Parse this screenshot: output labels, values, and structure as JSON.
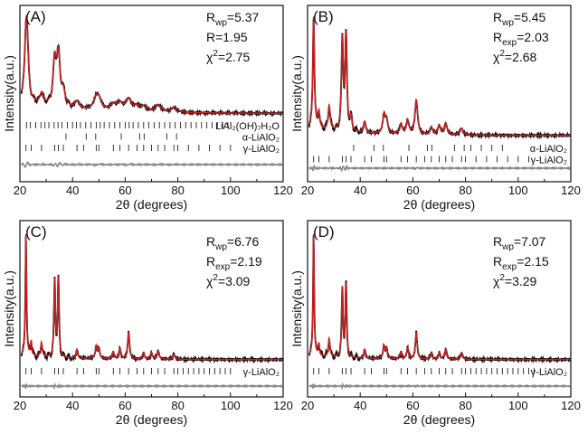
{
  "colors": {
    "observed": "#111111",
    "calculated": "#cc1f1f",
    "difference": "#8c8c8c",
    "reflections": "#222222"
  },
  "chart_data": [
    {
      "type": "line",
      "panel": "(A)",
      "xlabel": "2θ (degrees)",
      "ylabel": "Intensity(a.u.)",
      "xlim": [
        20,
        120
      ],
      "xticks": [
        "20",
        "40",
        "60",
        "80",
        "100",
        "120"
      ],
      "series": [
        {
          "name": "Observed"
        },
        {
          "name": "Calculated"
        },
        {
          "name": "Difference"
        }
      ],
      "stats": [
        {
          "label": "R",
          "sub": "wp",
          "value": "=5.37"
        },
        {
          "label": "R",
          "sub": "",
          "value": "=1.95"
        },
        {
          "label": "χ",
          "sup": "2",
          "value": "=2.75"
        }
      ],
      "phases": [
        {
          "name": "LiAl₂(OH)₇H₂O",
          "peaks": [
            22.5,
            24,
            26,
            28,
            29.5,
            31,
            33,
            34.5,
            36,
            38,
            40,
            41.5,
            43,
            45,
            47,
            49,
            50.5,
            52,
            54,
            56,
            58,
            60,
            61.5,
            63,
            65,
            67,
            69,
            71,
            73,
            75,
            77,
            79,
            81,
            83,
            85,
            87,
            89,
            91,
            93,
            95,
            97,
            99
          ]
        },
        {
          "name": "α-LiAlO₂",
          "peaks": [
            37.5,
            45.2,
            48.8,
            58.5,
            65.5,
            67.2,
            75.8,
            79.5
          ]
        },
        {
          "name": "γ-LiAlO₂",
          "peaks": [
            22.3,
            24.3,
            28.2,
            33.2,
            34.6,
            36.5,
            41.7,
            44.2,
            49,
            50,
            55.5,
            58,
            61.3,
            64.5,
            67,
            70,
            72.5,
            75,
            78.5,
            80,
            84,
            88,
            92,
            96,
            100
          ]
        }
      ],
      "peaks": [
        [
          22.3,
          1.0,
          0.6
        ],
        [
          22.8,
          0.7,
          0.6
        ],
        [
          28.2,
          0.18,
          0.7
        ],
        [
          33.2,
          0.7,
          0.7
        ],
        [
          34.6,
          0.85,
          0.8
        ],
        [
          36.5,
          0.22,
          0.9
        ],
        [
          41.7,
          0.12,
          1.0
        ],
        [
          49,
          0.18,
          1.2
        ],
        [
          50,
          0.15,
          1.2
        ],
        [
          55.5,
          0.1,
          1.3
        ],
        [
          58,
          0.12,
          1.3
        ],
        [
          61.3,
          0.2,
          1.3
        ],
        [
          64.5,
          0.08,
          1.3
        ],
        [
          67,
          0.08,
          1.3
        ],
        [
          72.5,
          0.12,
          1.4
        ],
        [
          78.5,
          0.08,
          1.5
        ]
      ],
      "background": 0.22
    },
    {
      "type": "line",
      "panel": "(B)",
      "xlabel": "2θ (degrees)",
      "ylabel": "Intensity(a.u.)",
      "xlim": [
        20,
        120
      ],
      "xticks": [
        "20",
        "40",
        "60",
        "80",
        "100",
        "120"
      ],
      "series": [
        {
          "name": "Observed"
        },
        {
          "name": "Calculated"
        },
        {
          "name": "Difference"
        }
      ],
      "stats": [
        {
          "label": "R",
          "sub": "wp",
          "value": "=5.45"
        },
        {
          "label": "R",
          "sub": "exp",
          "value": "=2.03"
        },
        {
          "label": "χ",
          "sup": "2",
          "value": "=2.68"
        }
      ],
      "phases": [
        {
          "name": "α-LiAlO₂",
          "peaks": [
            37.5,
            45.2,
            48.8,
            58.5,
            65.5,
            67.2,
            75.8,
            79.5,
            82,
            86,
            90,
            94
          ]
        },
        {
          "name": "γ-LiAlO₂",
          "peaks": [
            22.3,
            24.3,
            28.2,
            33.2,
            34.6,
            36.5,
            41.7,
            44.2,
            49,
            50,
            55.5,
            58,
            61.3,
            64.5,
            67,
            70,
            72.5,
            75,
            78.5,
            80,
            84,
            88,
            92,
            96,
            100,
            104
          ]
        }
      ],
      "peaks": [
        [
          22.3,
          1.0,
          0.35
        ],
        [
          24.3,
          0.15,
          0.4
        ],
        [
          28.2,
          0.22,
          0.45
        ],
        [
          33.2,
          0.8,
          0.4
        ],
        [
          34.6,
          0.85,
          0.4
        ],
        [
          36.5,
          0.12,
          0.45
        ],
        [
          41.7,
          0.1,
          0.5
        ],
        [
          49,
          0.16,
          0.55
        ],
        [
          50,
          0.12,
          0.55
        ],
        [
          55.5,
          0.08,
          0.6
        ],
        [
          58,
          0.12,
          0.6
        ],
        [
          61.3,
          0.3,
          0.6
        ],
        [
          67,
          0.06,
          0.6
        ],
        [
          70,
          0.08,
          0.6
        ],
        [
          72.5,
          0.1,
          0.6
        ],
        [
          78.5,
          0.06,
          0.7
        ]
      ],
      "background": 0.06
    },
    {
      "type": "line",
      "panel": "(C)",
      "xlabel": "2θ (degrees)",
      "ylabel": "Intensity(a.u.)",
      "xlim": [
        20,
        120
      ],
      "xticks": [
        "20",
        "40",
        "60",
        "80",
        "100",
        "120"
      ],
      "series": [
        {
          "name": "Observed"
        },
        {
          "name": "Calculated"
        },
        {
          "name": "Difference"
        }
      ],
      "stats": [
        {
          "label": "R",
          "sub": "wp",
          "value": "=6.76"
        },
        {
          "label": "R",
          "sub": "exp",
          "value": "=2.19"
        },
        {
          "label": "χ",
          "sup": "2",
          "value": "=3.09"
        }
      ],
      "phases": [
        {
          "name": "γ-LiAlO₂",
          "peaks": [
            22.3,
            24.3,
            28.2,
            33.2,
            34.6,
            36.5,
            41.7,
            44.2,
            49,
            50,
            55.5,
            58,
            61.3,
            64.5,
            67,
            70,
            72.5,
            75,
            78.5,
            80,
            82,
            84,
            86,
            88,
            90,
            92,
            94,
            96,
            98,
            100
          ]
        }
      ],
      "peaks": [
        [
          22.3,
          1.0,
          0.25
        ],
        [
          24.3,
          0.12,
          0.3
        ],
        [
          28.2,
          0.12,
          0.35
        ],
        [
          33.2,
          0.62,
          0.3
        ],
        [
          34.6,
          0.65,
          0.3
        ],
        [
          41.7,
          0.07,
          0.35
        ],
        [
          49,
          0.1,
          0.4
        ],
        [
          50,
          0.08,
          0.4
        ],
        [
          55.5,
          0.05,
          0.4
        ],
        [
          58,
          0.08,
          0.4
        ],
        [
          61.3,
          0.22,
          0.4
        ],
        [
          67,
          0.05,
          0.4
        ],
        [
          70,
          0.05,
          0.4
        ],
        [
          72.5,
          0.07,
          0.45
        ],
        [
          78.5,
          0.04,
          0.5
        ]
      ],
      "background": 0.03
    },
    {
      "type": "line",
      "panel": "(D)",
      "xlabel": "2θ (degrees)",
      "ylabel": "Intensity(a.u.)",
      "xlim": [
        20,
        120
      ],
      "xticks": [
        "20",
        "40",
        "60",
        "80",
        "100",
        "120"
      ],
      "series": [
        {
          "name": "Observed"
        },
        {
          "name": "Calculated"
        },
        {
          "name": "Difference"
        }
      ],
      "stats": [
        {
          "label": "R",
          "sub": "wp",
          "value": "=7.07"
        },
        {
          "label": "R",
          "sub": "exp",
          "value": "=2.15"
        },
        {
          "label": "χ",
          "sup": "2",
          "value": "=3.29"
        }
      ],
      "phases": [
        {
          "name": "γ-LiAlO₂",
          "peaks": [
            22.3,
            24.3,
            28.2,
            33.2,
            34.6,
            36.5,
            41.7,
            44.2,
            49,
            50,
            55.5,
            58,
            61.3,
            64.5,
            67,
            70,
            72.5,
            75,
            78.5,
            80,
            82,
            84,
            86,
            88,
            90,
            92,
            94,
            96,
            98,
            100,
            102,
            104,
            106
          ]
        }
      ],
      "peaks": [
        [
          22.3,
          1.0,
          0.25
        ],
        [
          24.3,
          0.1,
          0.3
        ],
        [
          28.2,
          0.15,
          0.35
        ],
        [
          33.2,
          0.55,
          0.3
        ],
        [
          34.6,
          0.6,
          0.3
        ],
        [
          41.7,
          0.07,
          0.35
        ],
        [
          49,
          0.1,
          0.4
        ],
        [
          50,
          0.08,
          0.4
        ],
        [
          55.5,
          0.05,
          0.4
        ],
        [
          58,
          0.09,
          0.4
        ],
        [
          61.3,
          0.22,
          0.4
        ],
        [
          67,
          0.05,
          0.4
        ],
        [
          70,
          0.05,
          0.4
        ],
        [
          72.5,
          0.08,
          0.45
        ],
        [
          78.5,
          0.05,
          0.5
        ]
      ],
      "background": 0.03
    }
  ]
}
